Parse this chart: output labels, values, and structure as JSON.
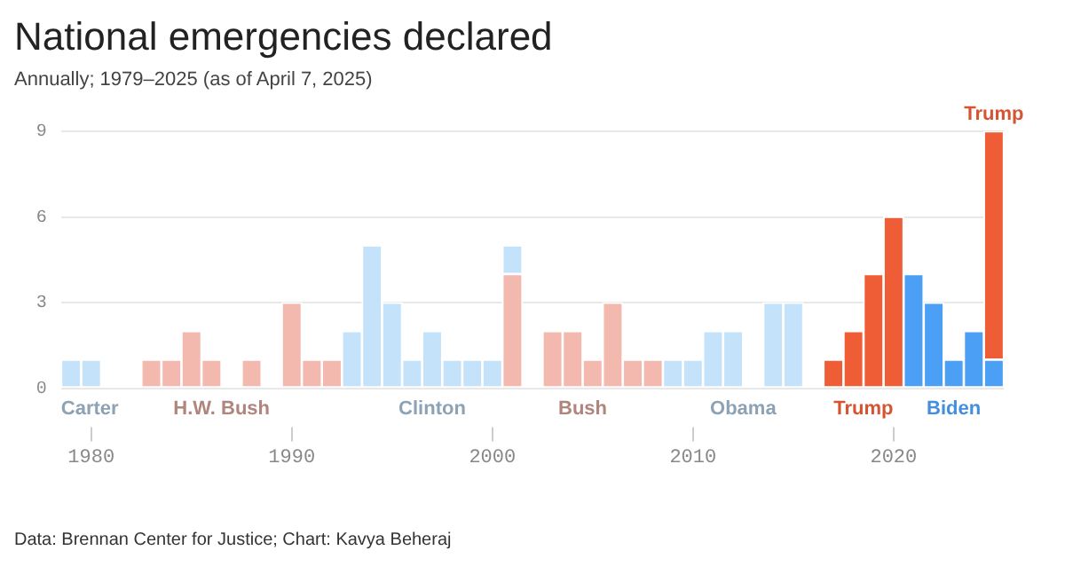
{
  "chart_data": {
    "type": "bar",
    "title": "National emergencies declared",
    "subtitle": "Annually; 1979–2025 (as of April 7, 2025)",
    "categories": [
      null,
      "1980",
      null,
      null,
      null,
      null,
      null,
      null,
      null,
      null,
      null,
      "1990",
      null,
      null,
      null,
      null,
      null,
      null,
      null,
      null,
      null,
      "2000",
      null,
      null,
      null,
      null,
      null,
      null,
      null,
      null,
      null,
      "2010",
      null,
      null,
      null,
      null,
      null,
      null,
      null,
      null,
      null,
      "2020",
      null,
      null,
      null,
      null,
      null
    ],
    "stacked": true,
    "ylim": [
      0,
      9
    ],
    "yticks": [
      0,
      3,
      6,
      9
    ],
    "grid": "y",
    "legend": false,
    "series": [
      {
        "name": "Carter",
        "color": "#c4e3fb",
        "values": [
          1,
          1,
          null,
          null,
          null,
          null,
          null,
          null,
          null,
          null,
          null,
          null,
          null,
          null,
          null,
          null,
          null,
          null,
          null,
          null,
          null,
          null,
          null,
          null,
          null,
          null,
          null,
          null,
          null,
          null,
          null,
          null,
          null,
          null,
          null,
          null,
          null,
          null,
          null,
          null,
          null,
          null,
          null,
          null,
          null,
          null,
          null
        ]
      },
      {
        "name": "H.W. Bush",
        "color": "#f3b9ae",
        "values": [
          null,
          null,
          0,
          0,
          1,
          1,
          2,
          1,
          0,
          1,
          0,
          3,
          1,
          1,
          null,
          null,
          null,
          null,
          null,
          null,
          null,
          null,
          null,
          null,
          null,
          null,
          null,
          null,
          null,
          null,
          null,
          null,
          null,
          null,
          null,
          null,
          null,
          null,
          null,
          null,
          null,
          null,
          null,
          null,
          null,
          null,
          null
        ]
      },
      {
        "name": "Bush",
        "color": "#f3b9ae",
        "values": [
          null,
          null,
          null,
          null,
          null,
          null,
          null,
          null,
          null,
          null,
          null,
          null,
          null,
          null,
          null,
          null,
          null,
          null,
          null,
          null,
          null,
          null,
          4,
          0,
          2,
          2,
          1,
          3,
          1,
          1,
          null,
          null,
          null,
          null,
          null,
          null,
          null,
          null,
          null,
          null,
          null,
          null,
          null,
          null,
          null,
          null,
          null
        ]
      },
      {
        "name": "Clinton",
        "color": "#c4e3fb",
        "values": [
          null,
          null,
          null,
          null,
          null,
          null,
          null,
          null,
          null,
          null,
          null,
          null,
          null,
          null,
          2,
          5,
          3,
          1,
          2,
          1,
          1,
          1,
          1,
          null,
          null,
          null,
          null,
          null,
          null,
          null,
          null,
          null,
          null,
          null,
          null,
          null,
          null,
          null,
          null,
          null,
          null,
          null,
          null,
          null,
          null,
          null,
          null
        ]
      },
      {
        "name": "Obama",
        "color": "#c4e3fb",
        "values": [
          null,
          null,
          null,
          null,
          null,
          null,
          null,
          null,
          null,
          null,
          null,
          null,
          null,
          null,
          null,
          null,
          null,
          null,
          null,
          null,
          null,
          null,
          null,
          null,
          null,
          null,
          null,
          null,
          null,
          null,
          1,
          1,
          2,
          2,
          0,
          3,
          3,
          0,
          null,
          null,
          null,
          null,
          null,
          null,
          null,
          null,
          null
        ]
      },
      {
        "name": "Trump",
        "color": "#ee5d36",
        "values": [
          null,
          null,
          null,
          null,
          null,
          null,
          null,
          null,
          null,
          null,
          null,
          null,
          null,
          null,
          null,
          null,
          null,
          null,
          null,
          null,
          null,
          null,
          null,
          null,
          null,
          null,
          null,
          null,
          null,
          null,
          null,
          null,
          null,
          null,
          null,
          null,
          null,
          null,
          1,
          2,
          4,
          6,
          null,
          null,
          null,
          null,
          null
        ]
      },
      {
        "name": "Biden",
        "color": "#4b9ff5",
        "values": [
          null,
          null,
          null,
          null,
          null,
          null,
          null,
          null,
          null,
          null,
          null,
          null,
          null,
          null,
          null,
          null,
          null,
          null,
          null,
          null,
          null,
          null,
          null,
          null,
          null,
          null,
          null,
          null,
          null,
          null,
          null,
          null,
          null,
          null,
          null,
          null,
          null,
          null,
          null,
          null,
          null,
          null,
          4,
          3,
          1,
          2,
          1
        ]
      },
      {
        "name": "Trump",
        "color": "#ee5d36",
        "values": [
          null,
          null,
          null,
          null,
          null,
          null,
          null,
          null,
          null,
          null,
          null,
          null,
          null,
          null,
          null,
          null,
          null,
          null,
          null,
          null,
          null,
          null,
          null,
          null,
          null,
          null,
          null,
          null,
          null,
          null,
          null,
          null,
          null,
          null,
          null,
          null,
          null,
          null,
          null,
          null,
          null,
          null,
          null,
          null,
          null,
          null,
          8
        ]
      }
    ],
    "annotations": [
      "Data: Brennan Center for Justice; Chart: Kavya Beheraj"
    ]
  }
}
